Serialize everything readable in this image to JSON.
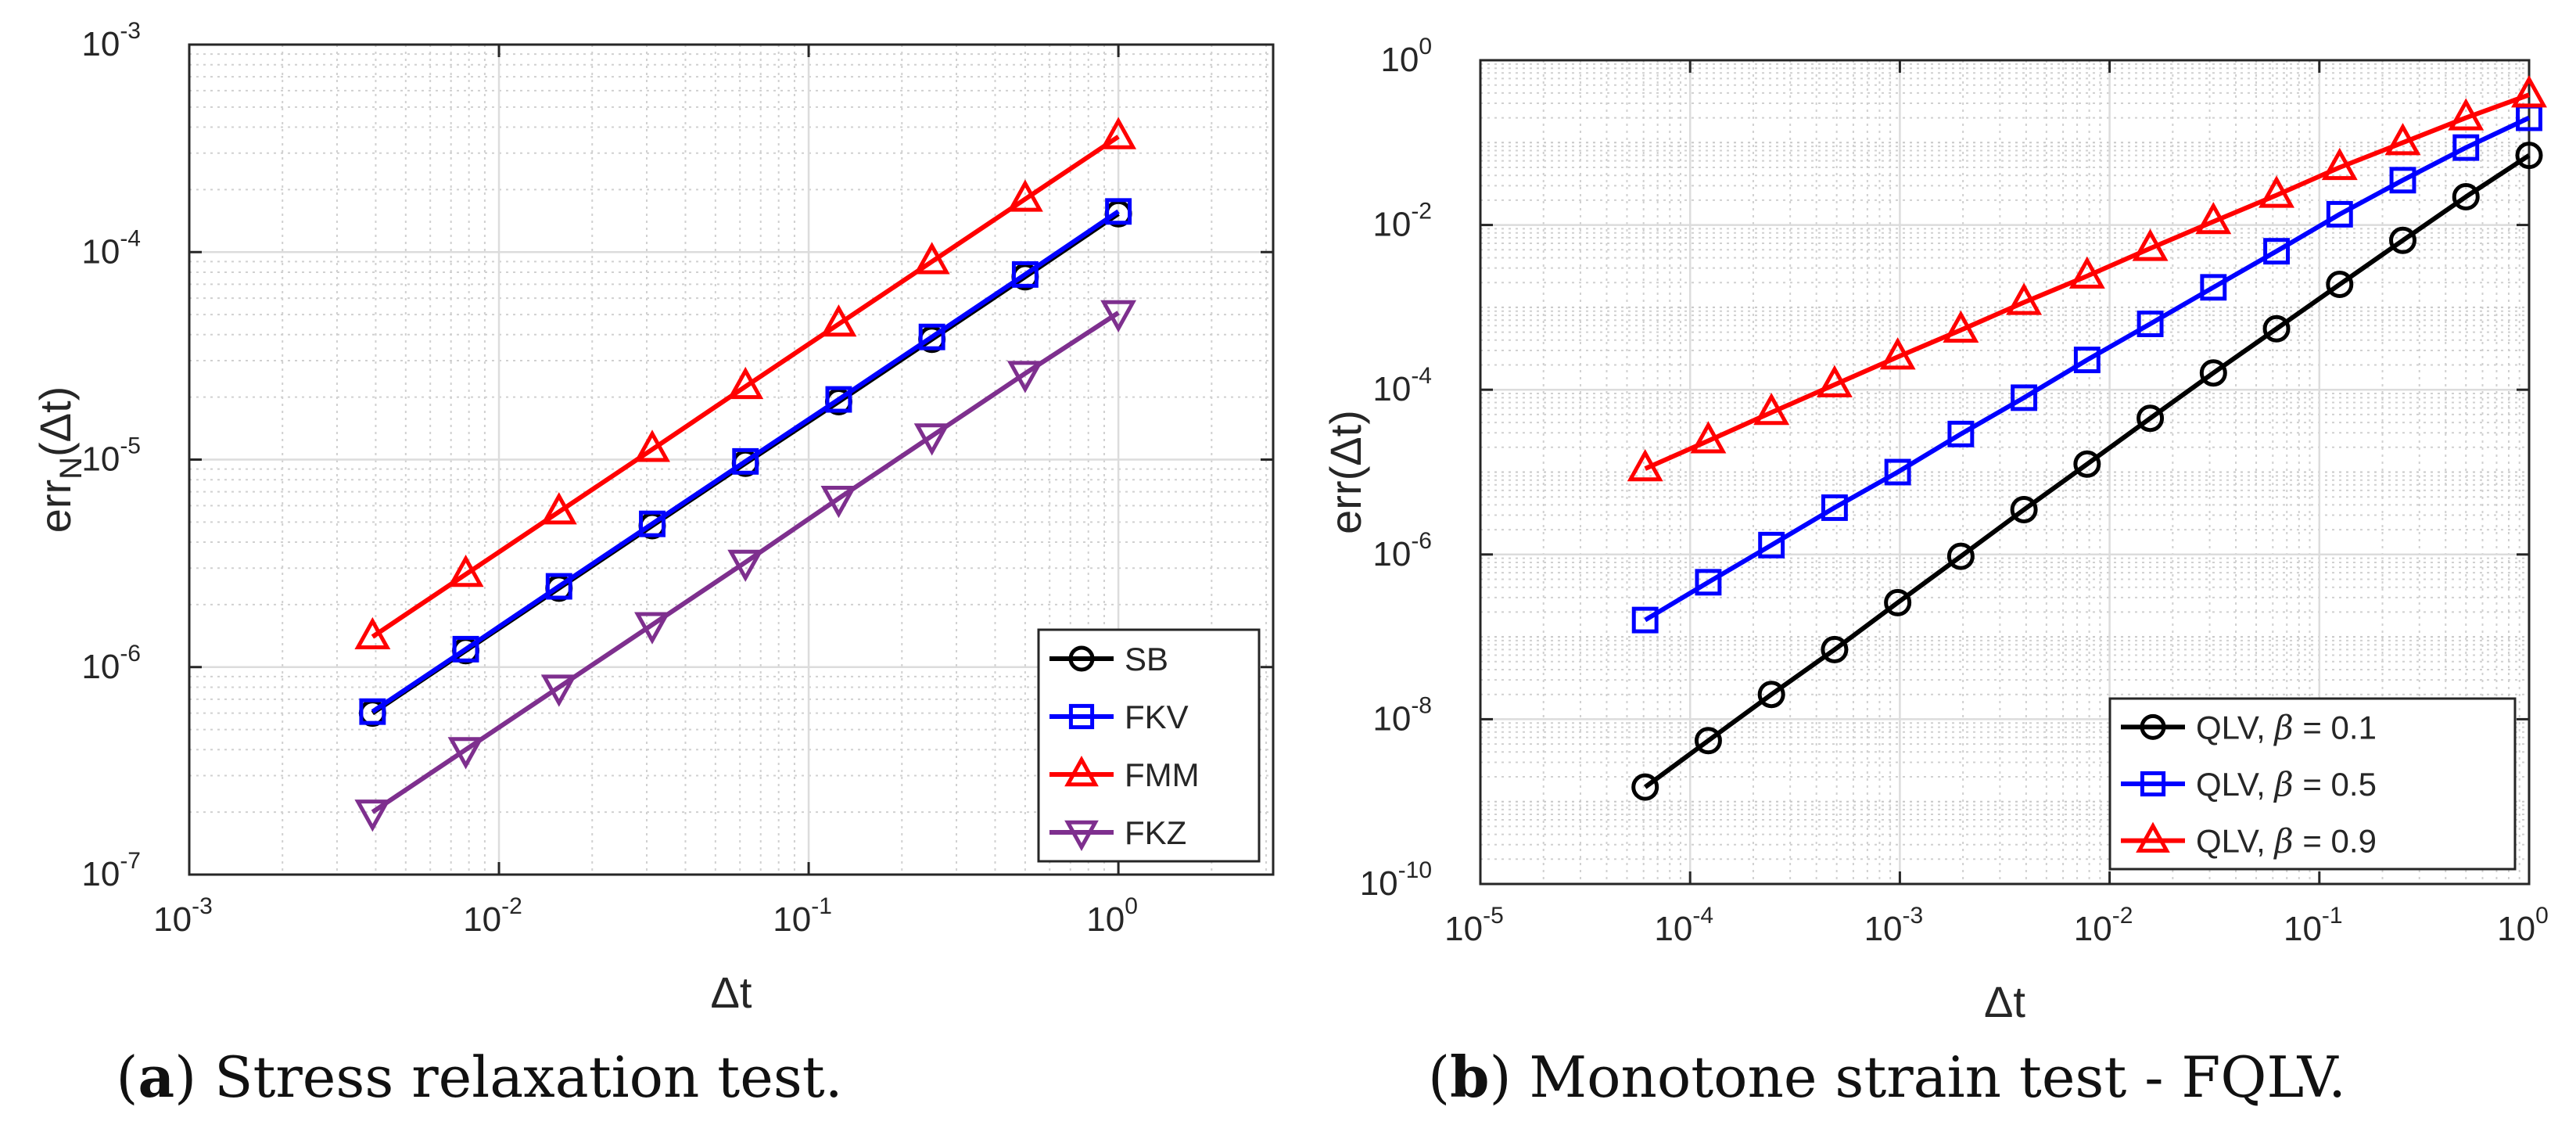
{
  "chart_data": [
    {
      "type": "line",
      "caption_label": "a",
      "caption_text": " Stress relaxation test.",
      "xlabel": "Δt",
      "ylabel_main": "err",
      "ylabel_sub": "N",
      "ylabel_tail": "(Δt)",
      "xscale": "log",
      "yscale": "log",
      "xlim": [
        0.001,
        3.16
      ],
      "ylim": [
        1e-07,
        0.001
      ],
      "xticks": [
        0.001,
        0.01,
        0.1,
        1
      ],
      "xtick_labels": [
        {
          "base": "10",
          "exp": "-3"
        },
        {
          "base": "10",
          "exp": "-2"
        },
        {
          "base": "10",
          "exp": "-1"
        },
        {
          "base": "10",
          "exp": "0"
        }
      ],
      "yticks": [
        1e-07,
        1e-06,
        1e-05,
        0.0001,
        0.001
      ],
      "ytick_labels": [
        {
          "base": "10",
          "exp": "-7"
        },
        {
          "base": "10",
          "exp": "-6"
        },
        {
          "base": "10",
          "exp": "-5"
        },
        {
          "base": "10",
          "exp": "-4"
        },
        {
          "base": "10",
          "exp": "-3"
        }
      ],
      "grid": true,
      "legend_position": "bottom-right",
      "x": [
        0.00390625,
        0.0078125,
        0.015625,
        0.03125,
        0.0625,
        0.125,
        0.25,
        0.5,
        1
      ],
      "series": [
        {
          "name": "SB",
          "color": "#000000",
          "marker": "circle",
          "values": [
            6e-07,
            1.2e-06,
            2.4e-06,
            4.8e-06,
            9.6e-06,
            1.9e-05,
            3.8e-05,
            7.6e-05,
            0.000153
          ]
        },
        {
          "name": "FKV",
          "color": "#0000ff",
          "marker": "square",
          "values": [
            6.1e-07,
            1.22e-06,
            2.45e-06,
            4.9e-06,
            9.8e-06,
            1.95e-05,
            3.9e-05,
            7.8e-05,
            0.000157
          ]
        },
        {
          "name": "FMM",
          "color": "#ff0000",
          "marker": "triangle-up",
          "values": [
            1.4e-06,
            2.8e-06,
            5.6e-06,
            1.12e-05,
            2.25e-05,
            4.5e-05,
            9e-05,
            0.00018,
            0.00036
          ]
        },
        {
          "name": "FKZ",
          "color": "#7e2f8e",
          "marker": "triangle-down",
          "values": [
            2e-07,
            4e-07,
            8e-07,
            1.6e-06,
            3.2e-06,
            6.5e-06,
            1.3e-05,
            2.6e-05,
            5.1e-05
          ]
        }
      ]
    },
    {
      "type": "line",
      "caption_label": "b",
      "caption_text": " Monotone strain test - FQLV.",
      "xlabel": "Δt",
      "ylabel_main": "err",
      "ylabel_sub": "",
      "ylabel_tail": "(Δt)",
      "xscale": "log",
      "yscale": "log",
      "xlim": [
        1e-05,
        1
      ],
      "ylim": [
        1e-10,
        1
      ],
      "xticks": [
        1e-05,
        0.0001,
        0.001,
        0.01,
        0.1,
        1
      ],
      "xtick_labels": [
        {
          "base": "10",
          "exp": "-5"
        },
        {
          "base": "10",
          "exp": "-4"
        },
        {
          "base": "10",
          "exp": "-3"
        },
        {
          "base": "10",
          "exp": "-2"
        },
        {
          "base": "10",
          "exp": "-1"
        },
        {
          "base": "10",
          "exp": "0"
        }
      ],
      "yticks": [
        1e-10,
        1e-08,
        1e-06,
        0.0001,
        0.01,
        1
      ],
      "ytick_labels": [
        {
          "base": "10",
          "exp": "-10"
        },
        {
          "base": "10",
          "exp": "-8"
        },
        {
          "base": "10",
          "exp": "-6"
        },
        {
          "base": "10",
          "exp": "-4"
        },
        {
          "base": "10",
          "exp": "-2"
        },
        {
          "base": "10",
          "exp": "0"
        }
      ],
      "grid": true,
      "legend_position": "bottom-right",
      "x": [
        6.103515625e-05,
        0.0001220703125,
        0.000244140625,
        0.00048828125,
        0.0009765625,
        0.001953125,
        0.00390625,
        0.0078125,
        0.015625,
        0.03125,
        0.0625,
        0.125,
        0.25,
        0.5,
        1
      ],
      "series": [
        {
          "name": "QLV, β = 0.1",
          "name_prefix": "QLV, ",
          "name_symbol": "β",
          "name_suffix": " = 0.1",
          "color": "#000000",
          "marker": "circle",
          "values": [
            1.5e-09,
            5.5e-09,
            2e-08,
            7e-08,
            2.6e-07,
            9.5e-07,
            3.5e-06,
            1.25e-05,
            4.5e-05,
            0.00016,
            0.00055,
            0.0019,
            0.0065,
            0.022,
            0.07
          ]
        },
        {
          "name": "QLV, β = 0.5",
          "name_prefix": "QLV, ",
          "name_symbol": "β",
          "name_suffix": " = 0.5",
          "color": "#0000ff",
          "marker": "square",
          "values": [
            1.6e-07,
            4.6e-07,
            1.3e-06,
            3.7e-06,
            1e-05,
            2.9e-05,
            8e-05,
            0.00023,
            0.00063,
            0.00175,
            0.0048,
            0.0135,
            0.035,
            0.087,
            0.2
          ]
        },
        {
          "name": "QLV, β = 0.9",
          "name_prefix": "QLV, ",
          "name_symbol": "β",
          "name_suffix": " = 0.9",
          "color": "#ff0000",
          "marker": "triangle-up",
          "values": [
            1.1e-05,
            2.4e-05,
            5.3e-05,
            0.000115,
            0.00025,
            0.00053,
            0.00115,
            0.0024,
            0.0052,
            0.011,
            0.023,
            0.05,
            0.1,
            0.2,
            0.38
          ]
        }
      ]
    }
  ]
}
